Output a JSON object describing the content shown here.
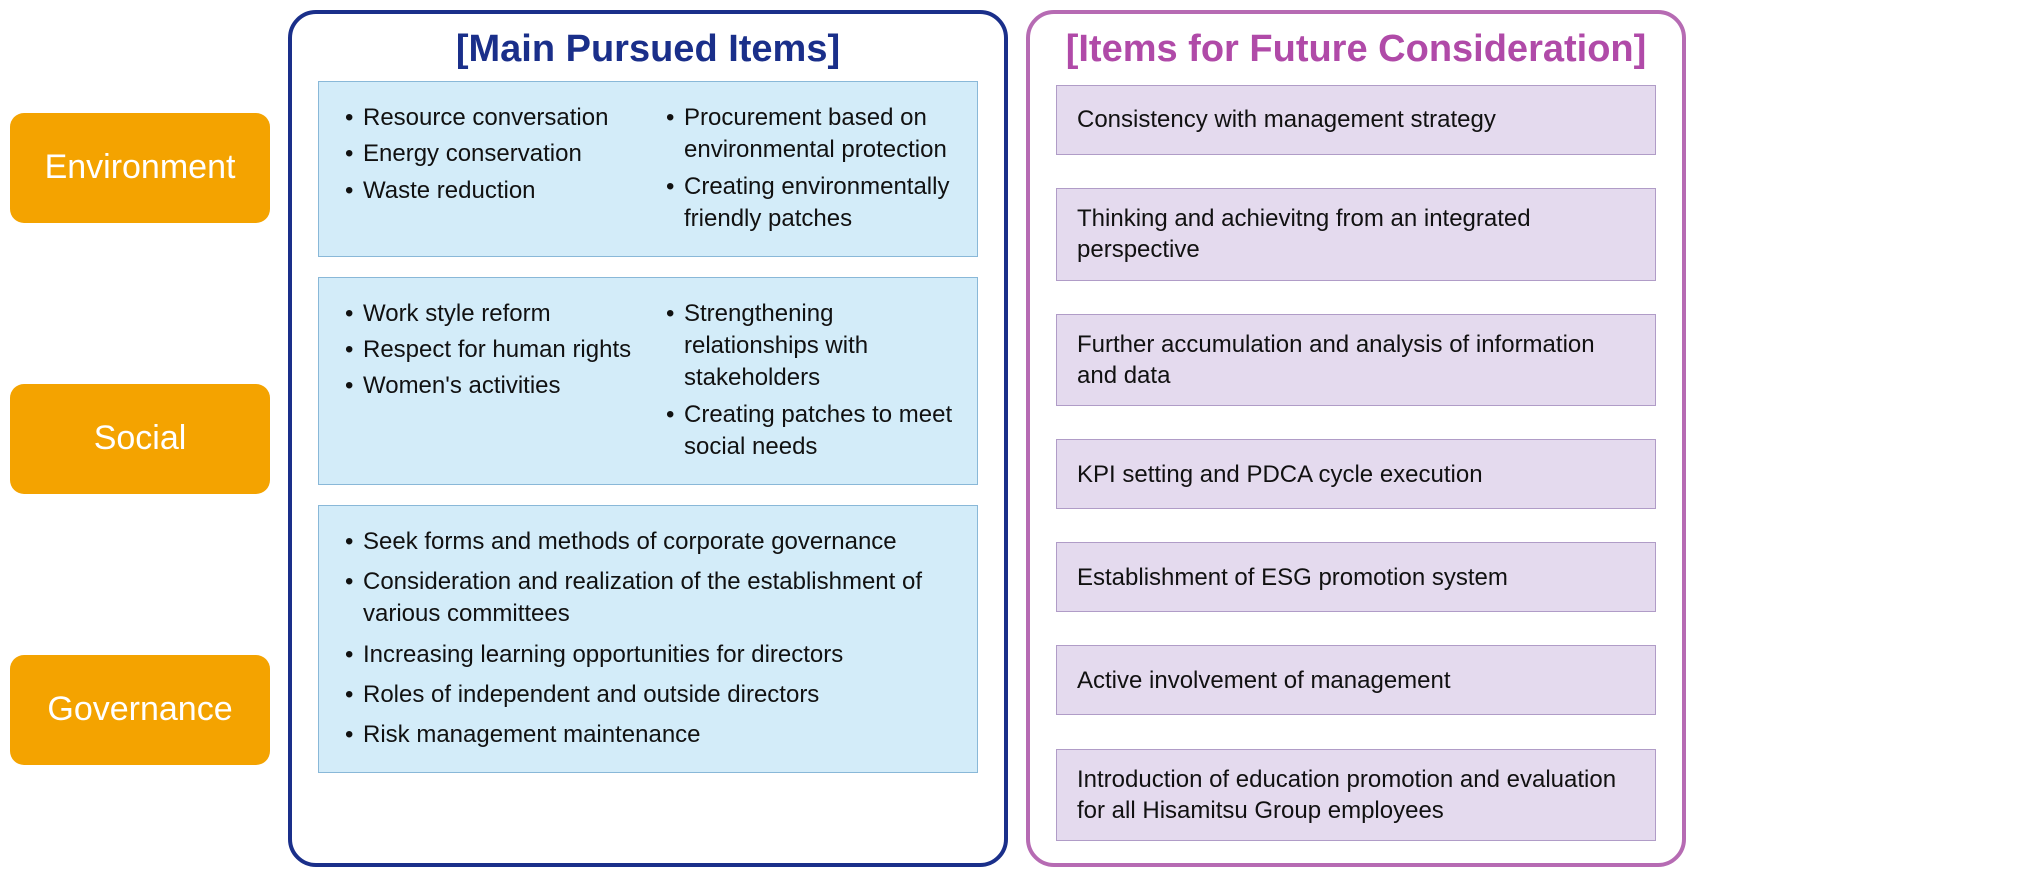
{
  "colors": {
    "category_bg": "#f4a300",
    "category_text": "#ffffff",
    "main_border": "#1a2f8a",
    "main_title": "#1a2f8a",
    "main_block_bg": "#d3ecf9",
    "main_block_border": "#89b8d8",
    "future_border": "#b66bb3",
    "future_title": "#b04aa8",
    "future_item_bg": "#e4daee",
    "future_item_border": "#b09cc7",
    "page_bg": "#ffffff",
    "text": "#111111"
  },
  "typography": {
    "category_fontsize": 34,
    "panel_title_fontsize": 38,
    "item_fontsize": 24
  },
  "layout": {
    "panel_radius": 28,
    "category_radius": 14,
    "total_width": 2014,
    "total_height": 857
  },
  "categories": [
    {
      "label": "Environment"
    },
    {
      "label": "Social"
    },
    {
      "label": "Governance"
    }
  ],
  "main_panel": {
    "title": "[Main Pursued Items]",
    "blocks": [
      {
        "two_column": true,
        "left": [
          "Resource conversation",
          "Energy conservation",
          "Waste reduction"
        ],
        "right": [
          "Procurement based on environmental protection",
          "Creating environmentally friendly patches"
        ]
      },
      {
        "two_column": true,
        "left": [
          "Work style reform",
          "Respect for human rights",
          "Women's activities"
        ],
        "right": [
          "Strengthening relationships with stakeholders",
          "Creating patches to meet social needs"
        ]
      },
      {
        "two_column": false,
        "items": [
          "Seek forms and methods of corporate governance",
          "Consideration and realization of the establishment of various committees",
          "Increasing learning opportunities for directors",
          "Roles of independent and outside directors",
          "Risk management maintenance"
        ]
      }
    ]
  },
  "future_panel": {
    "title": "[Items for Future Consideration]",
    "items": [
      "Consistency with management strategy",
      "Thinking and achievitng from an integrated perspective",
      "Further accumulation and analysis of information and data",
      "KPI setting and PDCA cycle execution",
      "Establishment of ESG promotion system",
      "Active involvement of management",
      "Introduction of education promotion and evaluation for all Hisamitsu Group employees"
    ]
  }
}
